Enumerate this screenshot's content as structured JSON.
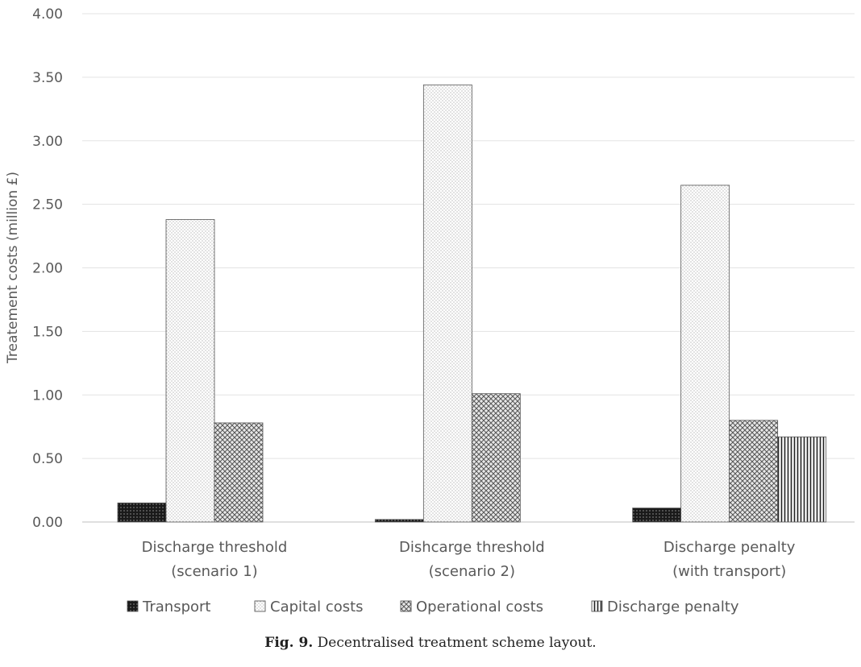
{
  "chart_data": {
    "type": "bar",
    "ylabel": "Treatement costs (million £)",
    "ylim": [
      0,
      4
    ],
    "yticks": [
      "0.00",
      "0.50",
      "1.00",
      "1.50",
      "2.00",
      "2.50",
      "3.00",
      "3.50",
      "4.00"
    ],
    "grid": true,
    "legend_position": "bottom",
    "categories": [
      [
        "Discharge threshold",
        "(scenario 1)"
      ],
      [
        "Dishcarge threshold",
        "(scenario 2)"
      ],
      [
        "Discharge penalty",
        "(with transport)"
      ]
    ],
    "series": [
      {
        "name": "Transport",
        "values": [
          0.15,
          0.02,
          0.11
        ],
        "pattern": "dark-dots"
      },
      {
        "name": "Capital costs",
        "values": [
          2.38,
          3.44,
          2.65
        ],
        "pattern": "light-dots"
      },
      {
        "name": "Operational costs",
        "values": [
          0.78,
          1.01,
          0.8
        ],
        "pattern": "crosshatch"
      },
      {
        "name": "Discharge penalty",
        "values": [
          0,
          0,
          0.67
        ],
        "pattern": "vertical-lines"
      }
    ]
  },
  "caption": {
    "label": "Fig. 9.",
    "text": "Decentralised treatment scheme layout."
  }
}
